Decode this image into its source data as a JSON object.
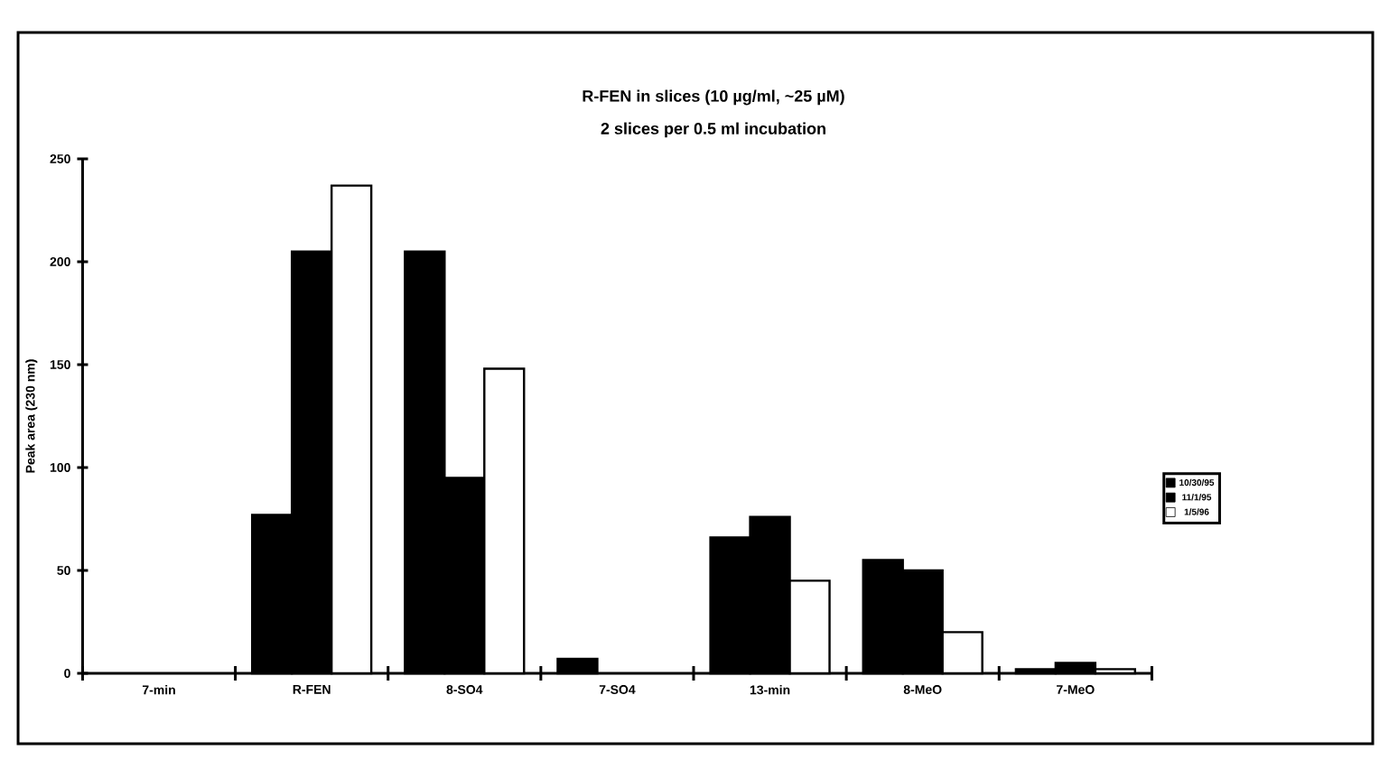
{
  "chart_data": {
    "type": "bar",
    "title": "R-FEN in slices (10 µg/ml, ~25 µM)",
    "subtitle": "2 slices per 0.5 ml incubation",
    "ylabel": "Peak area (230 nm)",
    "categories": [
      "7-min",
      "R-FEN",
      "8-SO4",
      "7-SO4",
      "13-min",
      "8-MeO",
      "7-MeO"
    ],
    "series": [
      {
        "name": "10/30/95",
        "color": "#000000",
        "values": [
          null,
          77,
          205,
          7,
          66,
          55,
          2
        ]
      },
      {
        "name": "11/1/95",
        "color": "#000000",
        "values": [
          null,
          205,
          95,
          null,
          76,
          50,
          5
        ]
      },
      {
        "name": "1/5/96",
        "color": "#ffffff",
        "values": [
          null,
          237,
          148,
          null,
          45,
          20,
          2
        ]
      }
    ],
    "ylim": [
      0,
      250
    ],
    "yticks": [
      0,
      50,
      100,
      150,
      200,
      250
    ],
    "grid": false,
    "legend": "right"
  }
}
